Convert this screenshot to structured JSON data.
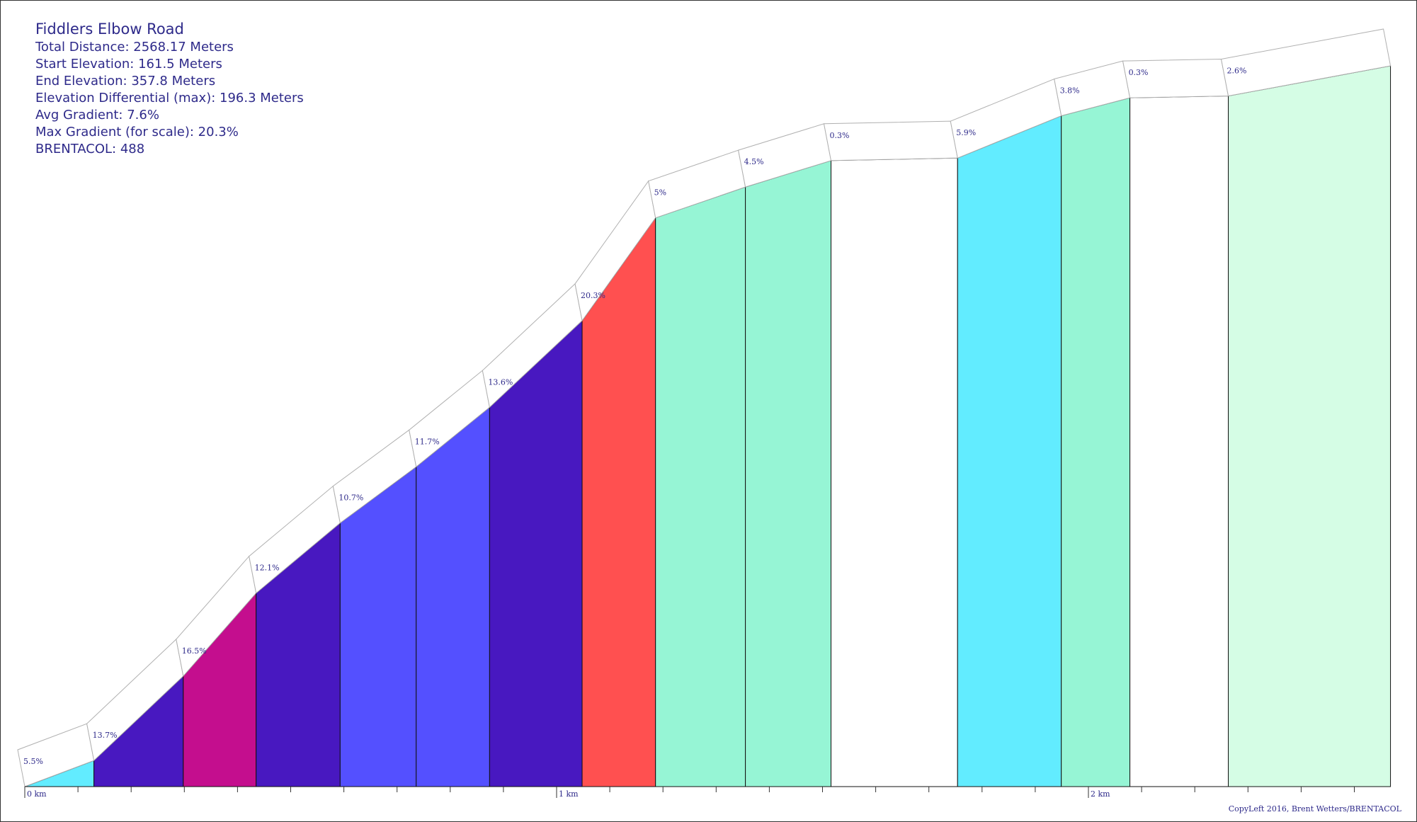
{
  "info": {
    "title": "Fiddlers Elbow Road",
    "total_distance": "Total Distance: 2568.17 Meters",
    "start_elevation": "Start Elevation: 161.5 Meters",
    "end_elevation": "End Elevation: 357.8 Meters",
    "elevation_differential": "Elevation Differential (max): 196.3 Meters",
    "avg_gradient": "Avg Gradient: 7.6%",
    "max_gradient": "Max Gradient (for scale): 20.3%",
    "brentacol": "BRENTACOL: 488"
  },
  "copyleft": "CopyLeft 2016, Brent Wetters/BRENTACOL",
  "chart_data": {
    "type": "area",
    "title": "Fiddlers Elbow Road",
    "x_unit": "km",
    "xlim": [
      0,
      2.568
    ],
    "ylim": [
      161.5,
      357.8
    ],
    "x_ticks": [
      "0 km",
      "1 km",
      "2 km"
    ],
    "x_tick_values": [
      0,
      1,
      2
    ],
    "segments": [
      {
        "x0": 0.0,
        "x1": 0.13,
        "elev0": 161.5,
        "elev1": 168.6,
        "gradient": "5.5%",
        "color": "#62ecff"
      },
      {
        "x0": 0.13,
        "x1": 0.298,
        "elev0": 168.6,
        "elev1": 191.6,
        "gradient": "13.7%",
        "color": "#4818c0"
      },
      {
        "x0": 0.298,
        "x1": 0.435,
        "elev0": 191.6,
        "elev1": 214.2,
        "gradient": "16.5%",
        "color": "#c40e8e"
      },
      {
        "x0": 0.435,
        "x1": 0.593,
        "elev0": 214.2,
        "elev1": 233.3,
        "gradient": "12.1%",
        "color": "#4818c0"
      },
      {
        "x0": 0.593,
        "x1": 0.736,
        "elev0": 233.3,
        "elev1": 248.6,
        "gradient": "10.7%",
        "color": "#5450ff"
      },
      {
        "x0": 0.736,
        "x1": 0.874,
        "elev0": 248.6,
        "elev1": 264.8,
        "gradient": "11.7%",
        "color": "#5450ff"
      },
      {
        "x0": 0.874,
        "x1": 1.048,
        "elev0": 264.8,
        "elev1": 288.4,
        "gradient": "13.6%",
        "color": "#4818c0"
      },
      {
        "x0": 1.048,
        "x1": 1.186,
        "elev0": 288.4,
        "elev1": 316.4,
        "gradient": "20.3%",
        "color": "#ff5050"
      },
      {
        "x0": 1.186,
        "x1": 1.355,
        "elev0": 316.4,
        "elev1": 324.8,
        "gradient": "5%",
        "color": "#96f5d5"
      },
      {
        "x0": 1.355,
        "x1": 1.516,
        "elev0": 324.8,
        "elev1": 332.0,
        "gradient": "4.5%",
        "color": "#96f5d5"
      },
      {
        "x0": 1.516,
        "x1": 1.754,
        "elev0": 332.0,
        "elev1": 332.7,
        "gradient": "0.3%",
        "color": "#ffffff"
      },
      {
        "x0": 1.754,
        "x1": 1.949,
        "elev0": 332.7,
        "elev1": 344.2,
        "gradient": "5.9%",
        "color": "#62ecff"
      },
      {
        "x0": 1.949,
        "x1": 2.078,
        "elev0": 344.2,
        "elev1": 349.1,
        "gradient": "3.8%",
        "color": "#96f5d5"
      },
      {
        "x0": 2.078,
        "x1": 2.263,
        "elev0": 349.1,
        "elev1": 349.6,
        "gradient": "0.3%",
        "color": "#ffffff"
      },
      {
        "x0": 2.263,
        "x1": 2.568,
        "elev0": 349.6,
        "elev1": 357.8,
        "gradient": "2.6%",
        "color": "#d5fde5"
      }
    ]
  }
}
